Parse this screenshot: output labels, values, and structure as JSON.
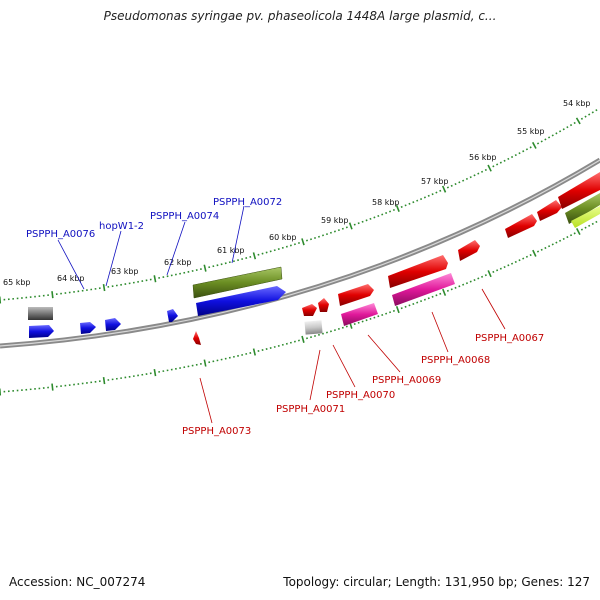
{
  "title": "Pseudomonas syringae pv. phaseolicola 1448A large plasmid, c...",
  "footer": {
    "accession": "Accession: NC_007274",
    "summary": "Topology: circular; Length: 131,950 bp; Genes: 127"
  },
  "colors": {
    "backbone": "#8a8a8a",
    "tick": "#2e8b2e",
    "blue": "#1010e0",
    "red": "#e00000",
    "pink": "#e0189a",
    "olive": "#6b8e23",
    "gray": "#777777",
    "lightgray": "#c8c8c8",
    "label_blue": "#1010c0",
    "label_red": "#c00000"
  },
  "kbp_labels": [
    "54 kbp",
    "55 kbp",
    "56 kbp",
    "57 kbp",
    "58 kbp",
    "59 kbp",
    "60 kbp",
    "61 kbp",
    "62 kbp",
    "63 kbp",
    "64 kbp",
    "65 kbp"
  ],
  "top_gene_labels": [
    "PSPPH_A0072",
    "PSPPH_A0074",
    "hopW1-2",
    "PSPPH_A0076"
  ],
  "bottom_gene_labels": [
    "PSPPH_A0067",
    "PSPPH_A0068",
    "PSPPH_A0069",
    "PSPPH_A0070",
    "PSPPH_A0071",
    "PSPPH_A0073"
  ]
}
